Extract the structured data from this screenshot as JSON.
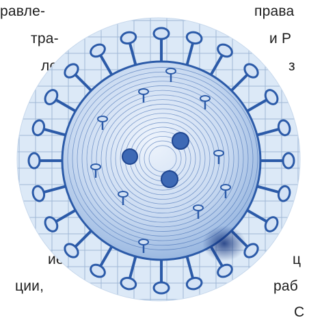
{
  "text_fragments": {
    "left_1": "равле-",
    "left_2": "тра-",
    "left_3": "ле",
    "left_4": "ие",
    "left_5": "ции,",
    "right_1": "права",
    "right_2": "и Р",
    "right_3": "з",
    "right_4": "ц",
    "right_5": "раб",
    "right_6": "C"
  },
  "illustration": {
    "subject": "virus-illustration",
    "colors": {
      "grid_background": "#dce9f7",
      "grid_line": "#9fb8d6",
      "virus_stroke": "#2b5aa8",
      "virus_fill": "#c4d6ef",
      "virus_dark": "#1e4590"
    }
  }
}
